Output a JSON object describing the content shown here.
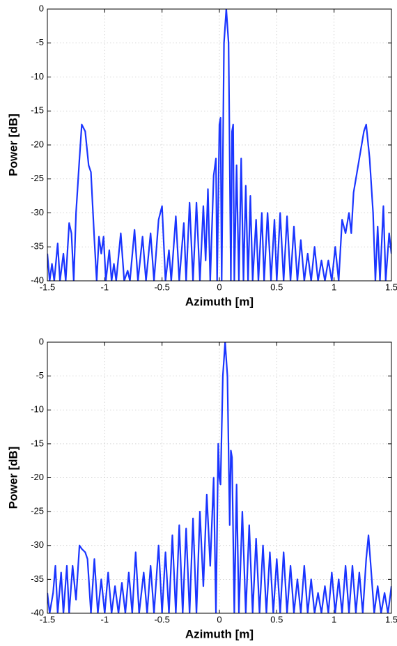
{
  "chart_data": [
    {
      "type": "line",
      "xlabel": "Azimuth [m]",
      "ylabel": "Power [dB]",
      "xlim": [
        -1.5,
        1.5
      ],
      "ylim": [
        -40,
        0
      ],
      "xticks": [
        -1.5,
        -1,
        -0.5,
        0,
        0.5,
        1,
        1.5
      ],
      "yticks": [
        -40,
        -35,
        -30,
        -25,
        -20,
        -15,
        -10,
        -5,
        0
      ],
      "grid": true,
      "x": [
        -1.5,
        -1.48,
        -1.46,
        -1.44,
        -1.41,
        -1.39,
        -1.36,
        -1.34,
        -1.31,
        -1.29,
        -1.27,
        -1.25,
        -1.22,
        -1.2,
        -1.17,
        -1.14,
        -1.12,
        -1.09,
        -1.07,
        -1.05,
        -1.03,
        -1.01,
        -0.99,
        -0.96,
        -0.94,
        -0.92,
        -0.9,
        -0.86,
        -0.83,
        -0.8,
        -0.78,
        -0.74,
        -0.71,
        -0.67,
        -0.64,
        -0.6,
        -0.57,
        -0.53,
        -0.5,
        -0.47,
        -0.44,
        -0.42,
        -0.38,
        -0.35,
        -0.31,
        -0.29,
        -0.26,
        -0.23,
        -0.2,
        -0.17,
        -0.14,
        -0.12,
        -0.1,
        -0.08,
        -0.05,
        -0.03,
        -0.02,
        0,
        0.01,
        0.02,
        0.04,
        0.06,
        0.08,
        0.1,
        0.11,
        0.12,
        0.13,
        0.15,
        0.17,
        0.19,
        0.21,
        0.23,
        0.25,
        0.27,
        0.29,
        0.32,
        0.34,
        0.37,
        0.39,
        0.42,
        0.45,
        0.48,
        0.5,
        0.53,
        0.56,
        0.59,
        0.62,
        0.65,
        0.68,
        0.71,
        0.74,
        0.77,
        0.8,
        0.83,
        0.86,
        0.89,
        0.92,
        0.95,
        0.98,
        1.01,
        1.04,
        1.07,
        1.1,
        1.13,
        1.15,
        1.17,
        1.2,
        1.23,
        1.26,
        1.28,
        1.31,
        1.34,
        1.36,
        1.38,
        1.4,
        1.43,
        1.45,
        1.48,
        1.5
      ],
      "series": [
        {
          "color": "#1a35ff",
          "values": [
            -36,
            -40,
            -37.5,
            -40,
            -34.5,
            -40,
            -36,
            -40,
            -31.5,
            -33,
            -40,
            -30,
            -22,
            -17,
            -18,
            -23,
            -24,
            -34,
            -40,
            -33.5,
            -36,
            -33.5,
            -40,
            -35.5,
            -40,
            -37.5,
            -40,
            -33,
            -40,
            -38.5,
            -40,
            -32.5,
            -40,
            -33.5,
            -40,
            -33,
            -40,
            -31,
            -29,
            -40,
            -35.5,
            -40,
            -30.5,
            -40,
            -31.5,
            -40,
            -28.5,
            -40,
            -28.5,
            -40,
            -29,
            -37,
            -26.5,
            -40,
            -24.5,
            -22,
            -40,
            -17,
            -16,
            -40,
            -5,
            0,
            -5,
            -40,
            -18,
            -17,
            -40,
            -23,
            -40,
            -22,
            -40,
            -26,
            -40,
            -27.5,
            -40,
            -31,
            -40,
            -30,
            -40,
            -30,
            -40,
            -31,
            -40,
            -30,
            -40,
            -30.5,
            -40,
            -32,
            -40,
            -34,
            -40,
            -36,
            -40,
            -35,
            -40,
            -37,
            -40,
            -37,
            -40,
            -35,
            -40,
            -31,
            -33,
            -30,
            -33,
            -27,
            -24,
            -21,
            -18,
            -17,
            -22,
            -30,
            -40,
            -32,
            -40,
            -29,
            -40,
            -33,
            -36
          ]
        }
      ]
    },
    {
      "type": "line",
      "xlabel": "Azimuth [m]",
      "ylabel": "Power [dB]",
      "xlim": [
        -1.5,
        1.5
      ],
      "ylim": [
        -40,
        0
      ],
      "xticks": [
        -1.5,
        -1,
        -0.5,
        0,
        0.5,
        1,
        1.5
      ],
      "yticks": [
        -40,
        -35,
        -30,
        -25,
        -20,
        -15,
        -10,
        -5,
        0
      ],
      "grid": true,
      "x": [
        -1.5,
        -1.48,
        -1.45,
        -1.43,
        -1.41,
        -1.38,
        -1.36,
        -1.33,
        -1.31,
        -1.28,
        -1.25,
        -1.22,
        -1.2,
        -1.17,
        -1.15,
        -1.12,
        -1.09,
        -1.06,
        -1.03,
        -1,
        -0.97,
        -0.94,
        -0.91,
        -0.88,
        -0.85,
        -0.82,
        -0.79,
        -0.76,
        -0.73,
        -0.7,
        -0.66,
        -0.63,
        -0.6,
        -0.57,
        -0.53,
        -0.5,
        -0.47,
        -0.44,
        -0.41,
        -0.38,
        -0.35,
        -0.32,
        -0.29,
        -0.26,
        -0.23,
        -0.2,
        -0.17,
        -0.14,
        -0.11,
        -0.08,
        -0.05,
        -0.03,
        -0.01,
        0,
        0.01,
        0.03,
        0.05,
        0.07,
        0.09,
        0.1,
        0.11,
        0.13,
        0.15,
        0.17,
        0.2,
        0.23,
        0.26,
        0.29,
        0.32,
        0.35,
        0.38,
        0.41,
        0.44,
        0.47,
        0.5,
        0.53,
        0.56,
        0.59,
        0.62,
        0.65,
        0.68,
        0.71,
        0.74,
        0.77,
        0.8,
        0.83,
        0.86,
        0.89,
        0.92,
        0.95,
        0.98,
        1.01,
        1.04,
        1.07,
        1.1,
        1.13,
        1.16,
        1.19,
        1.22,
        1.25,
        1.28,
        1.3,
        1.32,
        1.35,
        1.38,
        1.41,
        1.44,
        1.47,
        1.5
      ],
      "series": [
        {
          "color": "#1a35ff",
          "values": [
            -37,
            -40,
            -37,
            -33,
            -40,
            -34,
            -40,
            -33,
            -40,
            -33,
            -38,
            -30,
            -30.5,
            -31,
            -32,
            -40,
            -32,
            -40,
            -35,
            -40,
            -34,
            -40,
            -36,
            -40,
            -35.5,
            -40,
            -34,
            -40,
            -31,
            -40,
            -34,
            -40,
            -33,
            -40,
            -30,
            -40,
            -31,
            -40,
            -28.5,
            -40,
            -27,
            -40,
            -27.5,
            -40,
            -26,
            -40,
            -25,
            -36,
            -22.5,
            -33,
            -20,
            -40,
            -15,
            -20,
            -21,
            -5,
            0,
            -5,
            -27,
            -16,
            -17,
            -40,
            -21,
            -40,
            -25,
            -40,
            -27,
            -40,
            -29,
            -40,
            -30,
            -40,
            -31,
            -40,
            -32,
            -40,
            -31,
            -40,
            -33,
            -40,
            -35,
            -40,
            -33,
            -40,
            -35,
            -40,
            -37,
            -40,
            -36,
            -40,
            -34,
            -40,
            -35,
            -40,
            -33,
            -40,
            -33,
            -40,
            -34,
            -40,
            -32,
            -28.5,
            -33,
            -40,
            -36,
            -40,
            -37,
            -40,
            -36
          ]
        }
      ]
    }
  ]
}
